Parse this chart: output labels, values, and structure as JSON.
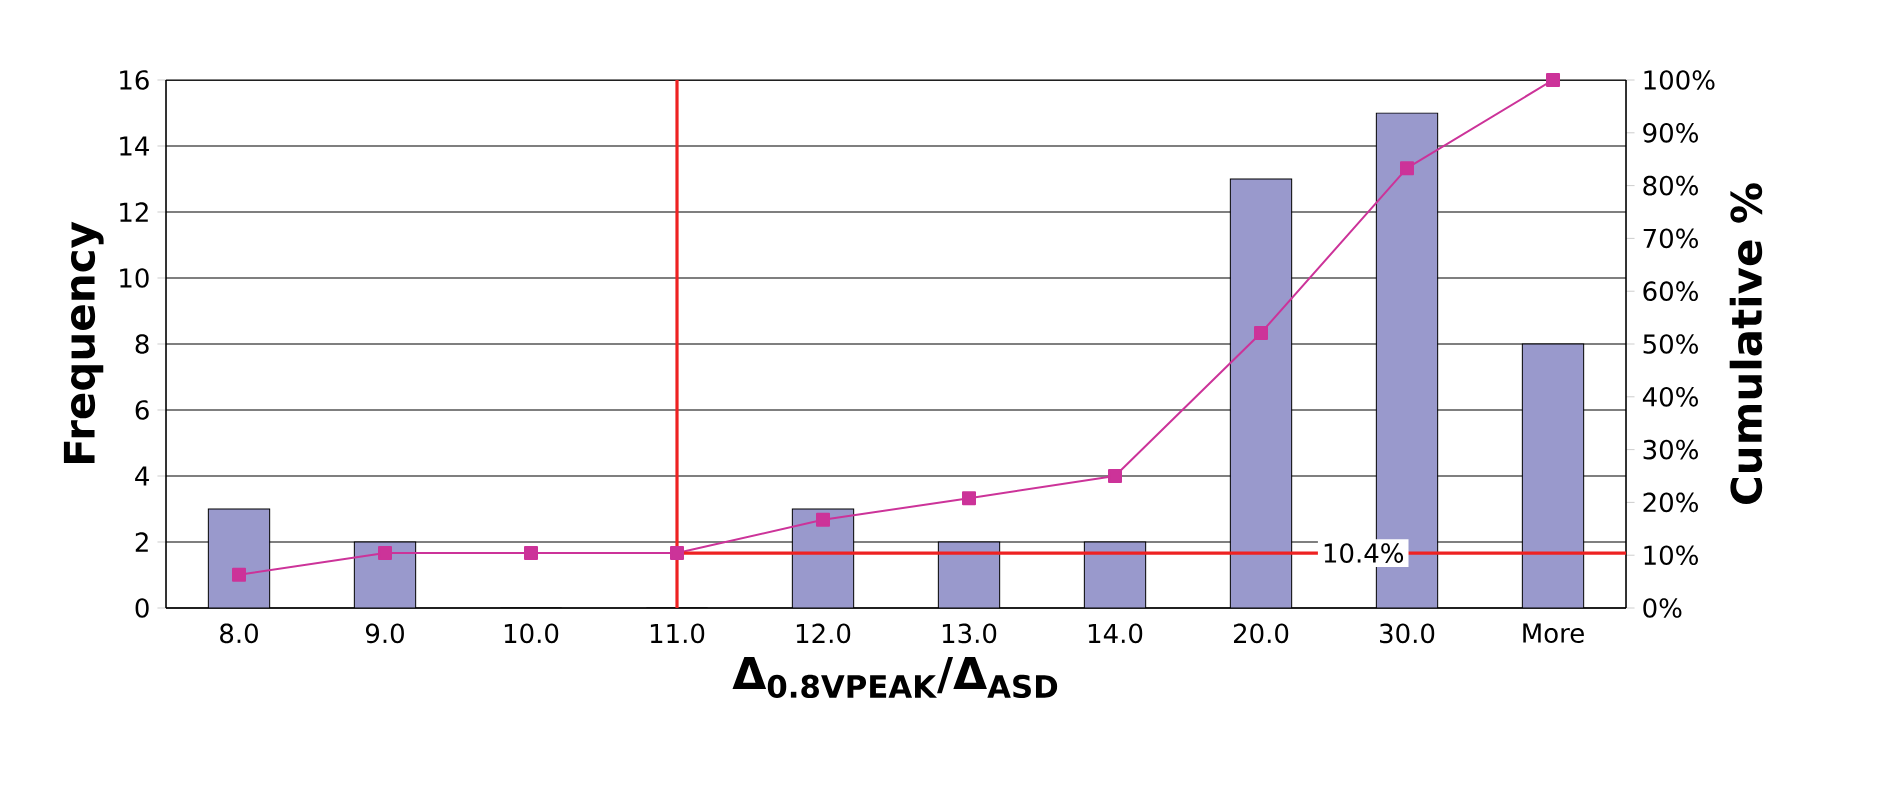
{
  "chart_data": {
    "type": "bar",
    "xlabel": "Δ$_{0.8VPEAK}$/Δ$_{ASD}$",
    "ylabel": "Frequency",
    "y2label": "Cumulative %",
    "categories": [
      "8.0",
      "9.0",
      "10.0",
      "11.0",
      "12.0",
      "13.0",
      "14.0",
      "20.0",
      "30.0",
      "More"
    ],
    "series": [
      {
        "color": "#9999cc",
        "values": [
          3,
          2,
          0,
          0,
          3,
          2,
          2,
          13,
          15,
          8
        ]
      },
      {
        "type": "line",
        "axis": "y2",
        "color": "#cc3399",
        "marker": "square",
        "values": [
          6.3,
          10.4,
          10.4,
          10.4,
          16.7,
          20.8,
          25.0,
          52.1,
          83.3,
          100
        ]
      }
    ],
    "ylim": [
      0,
      16
    ],
    "yticks": [
      0,
      2,
      4,
      6,
      8,
      10,
      12,
      14,
      16
    ],
    "y2lim": [
      0,
      100
    ],
    "y2ticks": [
      {
        "value": 0,
        "label": "0%"
      },
      {
        "value": 10,
        "label": "10%"
      },
      {
        "value": 20,
        "label": "20%"
      },
      {
        "value": 30,
        "label": "30%"
      },
      {
        "value": 40,
        "label": "40%"
      },
      {
        "value": 50,
        "label": "50%"
      },
      {
        "value": 60,
        "label": "60%"
      },
      {
        "value": 70,
        "label": "70%"
      },
      {
        "value": 80,
        "label": "80%"
      },
      {
        "value": 90,
        "label": "90%"
      },
      {
        "value": 100,
        "label": "100%"
      }
    ],
    "grid": "y",
    "ref_lines": [
      {
        "axis": "x",
        "value": "11.0",
        "color": "#ee2222"
      },
      {
        "axis": "y2",
        "value": 10.4,
        "label": "10.4%",
        "color": "#ee2222"
      }
    ]
  }
}
